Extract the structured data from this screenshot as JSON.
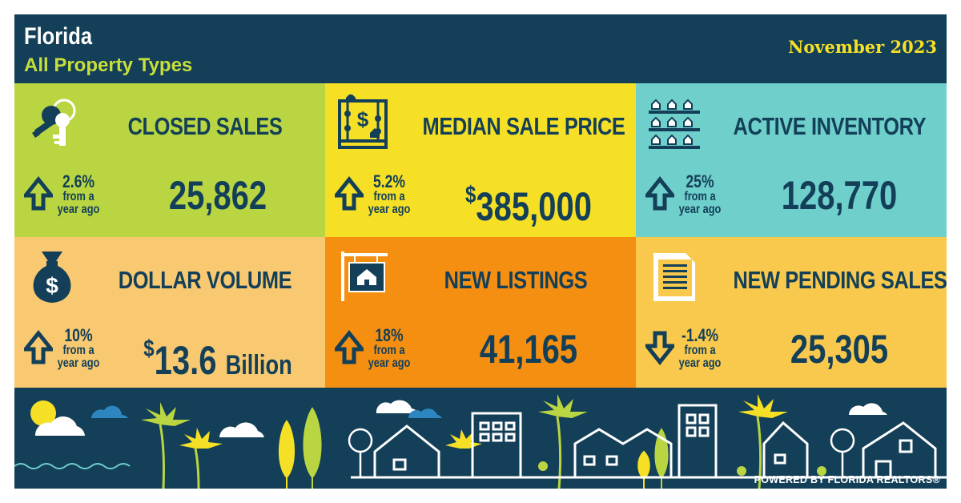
{
  "header": {
    "region": "Florida",
    "subtitle": "All Property Types",
    "period": "November 2023"
  },
  "colors": {
    "navy": "#133f58",
    "lime": "#b9d542",
    "yellow": "#f6e026",
    "teal": "#6fcfcb",
    "peach": "#f8c971",
    "orange": "#f58f12",
    "gold": "#f8c94c"
  },
  "metrics": [
    {
      "label": "CLOSED SALES",
      "icon": "keys-icon",
      "direction": "up",
      "change": "2.6%",
      "from1": "from a",
      "from2": "year ago",
      "value": "25,862"
    },
    {
      "label": "MEDIAN SALE PRICE",
      "icon": "abacus-icon",
      "direction": "up",
      "change": "5.2%",
      "from1": "from a",
      "from2": "year ago",
      "currency": "$",
      "value": "385,000"
    },
    {
      "label": "ACTIVE INVENTORY",
      "icon": "houses-grid-icon",
      "direction": "up",
      "change": "25%",
      "from1": "from a",
      "from2": "year ago",
      "value": "128,770"
    },
    {
      "label": "DOLLAR VOLUME",
      "icon": "money-bag-icon",
      "direction": "up",
      "change": "10%",
      "from1": "from a",
      "from2": "year ago",
      "currency": "$",
      "value": "13.6",
      "unit": "Billion"
    },
    {
      "label": "NEW LISTINGS",
      "icon": "for-sale-sign-icon",
      "direction": "up",
      "change": "18%",
      "from1": "from a",
      "from2": "year ago",
      "value": "41,165"
    },
    {
      "label": "NEW PENDING SALES",
      "icon": "document-icon",
      "direction": "down",
      "change": "-1.4%",
      "from1": "from a",
      "from2": "year ago",
      "value": "25,305"
    }
  ],
  "footer": {
    "powered_by": "POWERED BY FLORIDA REALTORS®"
  }
}
